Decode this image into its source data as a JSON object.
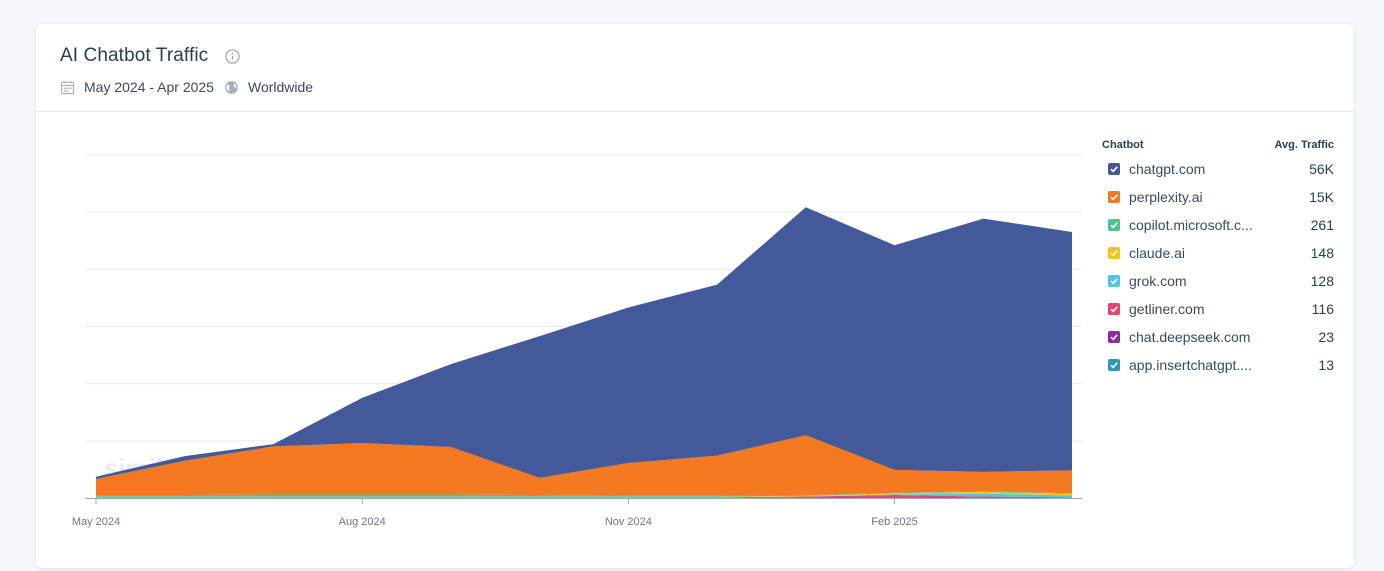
{
  "header": {
    "title": "AI Chatbot Traffic",
    "date_range": "May 2024 - Apr 2025",
    "region": "Worldwide",
    "info_icon": "info-icon",
    "calendar_icon": "calendar-icon",
    "globe_icon": "globe-icon"
  },
  "legend": {
    "col_chatbot": "Chatbot",
    "col_traffic": "Avg. Traffic",
    "items": [
      {
        "name": "chatgpt.com",
        "value": "56K",
        "color": "#44599a"
      },
      {
        "name": "perplexity.ai",
        "value": "15K",
        "color": "#f47920"
      },
      {
        "name": "copilot.microsoft.c...",
        "value": "261",
        "color": "#49c591"
      },
      {
        "name": "claude.ai",
        "value": "148",
        "color": "#fbc21a"
      },
      {
        "name": "grok.com",
        "value": "128",
        "color": "#4fc3e8"
      },
      {
        "name": "getliner.com",
        "value": "116",
        "color": "#e5466f"
      },
      {
        "name": "chat.deepseek.com",
        "value": "23",
        "color": "#8e2a9e"
      },
      {
        "name": "app.insertchatgpt....",
        "value": "13",
        "color": "#2a9bb0"
      }
    ]
  },
  "chart_data": {
    "type": "area",
    "stacked": true,
    "watermark": "similarweb",
    "x": [
      "May 2024",
      "Jun 2024",
      "Jul 2024",
      "Aug 2024",
      "Sep 2024",
      "Oct 2024",
      "Nov 2024",
      "Dec 2024",
      "Jan 2025",
      "Feb 2025",
      "Mar 2025",
      "Apr 2025"
    ],
    "x_tick_labels": [
      "May 2024",
      "Aug 2024",
      "Nov 2024",
      "Feb 2025"
    ],
    "x_tick_index": [
      0,
      3,
      6,
      9
    ],
    "ylim": [
      0,
      60
    ],
    "y_gridlines": [
      10,
      20,
      30,
      40,
      50,
      60
    ],
    "y_tick_labels_visible": false,
    "grid": true,
    "legend_position": "right",
    "series": [
      {
        "name": "app.insertchatgpt....",
        "color": "#2a9bb0",
        "values": [
          0.02,
          0.02,
          0.02,
          0.02,
          0.02,
          0.02,
          0.02,
          0.02,
          0.02,
          0.02,
          0.02,
          0.02
        ]
      },
      {
        "name": "chat.deepseek.com",
        "color": "#8e2a9e",
        "values": [
          0,
          0,
          0,
          0,
          0,
          0,
          0,
          0,
          0.05,
          0.1,
          0.05,
          0.02
        ]
      },
      {
        "name": "getliner.com",
        "color": "#e5466f",
        "values": [
          0.1,
          0.1,
          0.1,
          0.1,
          0.1,
          0.1,
          0.1,
          0.1,
          0.2,
          0.4,
          0.2,
          0.1
        ]
      },
      {
        "name": "grok.com",
        "color": "#4fc3e8",
        "values": [
          0,
          0,
          0,
          0,
          0,
          0,
          0,
          0,
          0,
          0.1,
          0.5,
          0.3
        ]
      },
      {
        "name": "claude.ai",
        "color": "#fbc21a",
        "values": [
          0.1,
          0.1,
          0.1,
          0.1,
          0.1,
          0.1,
          0.1,
          0.1,
          0.1,
          0.2,
          0.3,
          0.3
        ]
      },
      {
        "name": "copilot.microsoft.c...",
        "color": "#49c591",
        "values": [
          0.3,
          0.3,
          0.4,
          0.4,
          0.4,
          0.3,
          0.2,
          0.2,
          0.1,
          0.1,
          0.1,
          0.1
        ]
      },
      {
        "name": "perplexity.ai",
        "color": "#f47920",
        "values": [
          2.8,
          6.0,
          8.4,
          9.0,
          8.3,
          3.0,
          5.7,
          7.0,
          10.5,
          4.0,
          3.4,
          4.0
        ]
      },
      {
        "name": "chatgpt.com",
        "color": "#44599a",
        "values": [
          0.4,
          0.8,
          0.4,
          7.9,
          14.5,
          24.8,
          27.2,
          29.9,
          39.9,
          39.3,
          44.3,
          41.7
        ]
      }
    ]
  }
}
